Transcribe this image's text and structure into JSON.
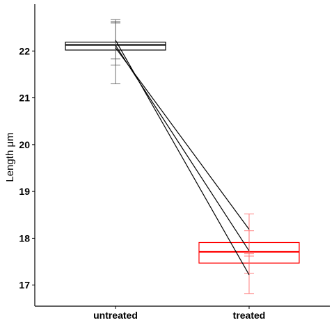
{
  "chart_data": {
    "type": "box",
    "title": "",
    "xlabel": "",
    "ylabel": "Length μm",
    "ylim": [
      16.55,
      23.0
    ],
    "yticks": [
      17,
      18,
      19,
      20,
      21,
      22
    ],
    "categories": [
      "untreated",
      "treated"
    ],
    "boxes": [
      {
        "category": "untreated",
        "q1": 22.02,
        "median": 22.13,
        "q3": 22.19,
        "color": "#000000"
      },
      {
        "category": "treated",
        "q1": 17.47,
        "median": 17.71,
        "q3": 17.91,
        "color": "#ff0000"
      }
    ],
    "paired_lines": [
      {
        "untreated": 22.23,
        "treated": 17.22
      },
      {
        "untreated": 22.12,
        "treated": 17.73
      },
      {
        "untreated": 22.07,
        "treated": 18.19
      }
    ],
    "error_bars": [
      {
        "category": "untreated",
        "center": 22.23,
        "low": 21.83,
        "high": 22.63,
        "color": "#555555"
      },
      {
        "category": "untreated",
        "center": 22.12,
        "low": 21.7,
        "high": 22.6,
        "color": "#555555"
      },
      {
        "category": "untreated",
        "center": 22.07,
        "low": 21.3,
        "high": 22.67,
        "color": "#555555"
      },
      {
        "category": "treated",
        "center": 17.22,
        "low": 16.82,
        "high": 17.62,
        "color": "#ff6666"
      },
      {
        "category": "treated",
        "center": 17.73,
        "low": 17.25,
        "high": 18.16,
        "color": "#ff6666"
      },
      {
        "category": "treated",
        "center": 18.19,
        "low": 17.67,
        "high": 18.52,
        "color": "#ff6666"
      }
    ],
    "grid": false,
    "legend": "none"
  }
}
